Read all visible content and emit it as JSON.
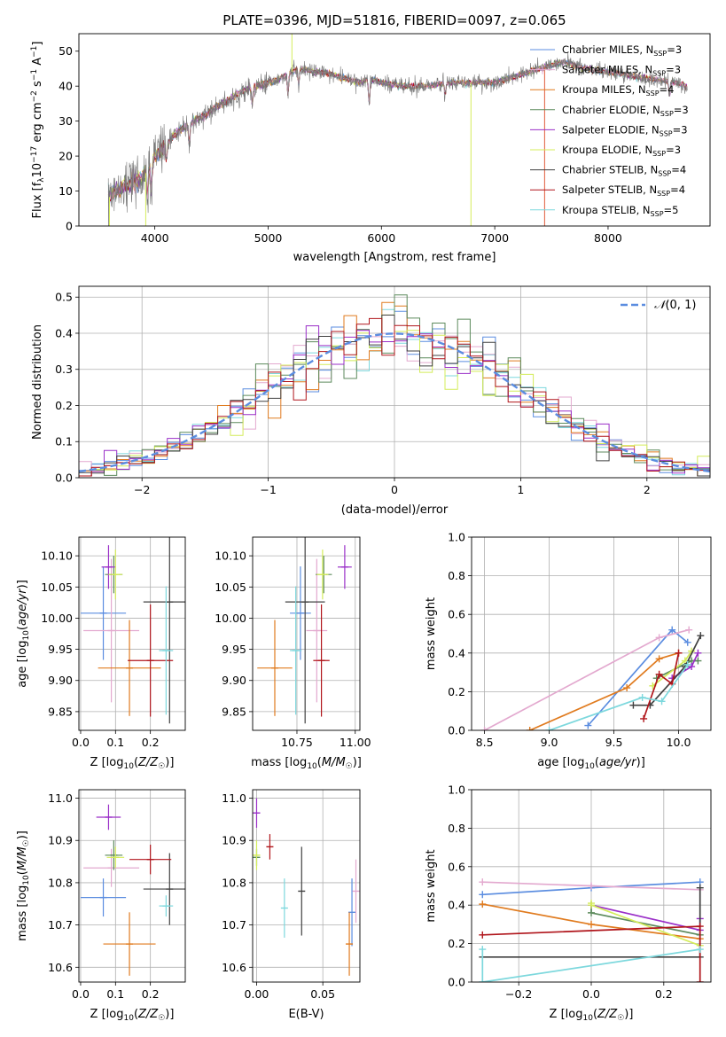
{
  "figure": {
    "title": "PLATE=0396, MJD=51816, FIBERID=0097, z=0.065"
  },
  "models": [
    {
      "name": "Chabrier MILES, N$_{SSP}$=3",
      "color": "#5b8de0"
    },
    {
      "name": "Salpeter MILES, N$_{SSP}$=3",
      "color": "#e3a9cf"
    },
    {
      "name": "Kroupa MILES, N$_{SSP}$=4",
      "color": "#e07b1f"
    },
    {
      "name": "Chabrier ELODIE, N$_{SSP}$=3",
      "color": "#5c8a5c"
    },
    {
      "name": "Salpeter ELODIE, N$_{SSP}$=3",
      "color": "#9a2fc8"
    },
    {
      "name": "Kroupa ELODIE, N$_{SSP}$=3",
      "color": "#d4ec5a"
    },
    {
      "name": "Chabrier STELIB, N$_{SSP}$=4",
      "color": "#404040"
    },
    {
      "name": "Salpeter STELIB, N$_{SSP}$=4",
      "color": "#b0151b"
    },
    {
      "name": "Kroupa STELIB, N$_{SSP}$=5",
      "color": "#7dd8dd"
    }
  ],
  "legend_labels": [
    {
      "pre": "Chabrier MILES, N",
      "sub": "SSP",
      "post": "=3"
    },
    {
      "pre": "Salpeter MILES, N",
      "sub": "SSP",
      "post": "=3"
    },
    {
      "pre": "Kroupa MILES, N",
      "sub": "SSP",
      "post": "=4"
    },
    {
      "pre": "Chabrier ELODIE, N",
      "sub": "SSP",
      "post": "=3"
    },
    {
      "pre": "Salpeter ELODIE, N",
      "sub": "SSP",
      "post": "=3"
    },
    {
      "pre": "Kroupa ELODIE, N",
      "sub": "SSP",
      "post": "=3"
    },
    {
      "pre": "Chabrier STELIB, N",
      "sub": "SSP",
      "post": "=4"
    },
    {
      "pre": "Salpeter STELIB, N",
      "sub": "SSP",
      "post": "=4"
    },
    {
      "pre": "Kroupa STELIB, N",
      "sub": "SSP",
      "post": "=5"
    }
  ],
  "chart_data": [
    {
      "id": "spectrum",
      "type": "line",
      "title": "PLATE=0396, MJD=51816, FIBERID=0097, z=0.065",
      "xlabel": "wavelength [Angstrom, rest frame]",
      "ylabel": "Flux [f_λ 10^-17 erg cm^-2 s^-1 A^-1]",
      "xlim": [
        3330,
        8900
      ],
      "ylim": [
        0,
        55
      ],
      "xticks": [
        4000,
        5000,
        6000,
        7000,
        8000
      ],
      "yticks": [
        0,
        10,
        20,
        30,
        40,
        50
      ],
      "legend": "top-right",
      "grid": false,
      "continuum": [
        [
          3590,
          8
        ],
        [
          3700,
          11
        ],
        [
          3850,
          13
        ],
        [
          3950,
          16
        ],
        [
          4000,
          20
        ],
        [
          4100,
          23
        ],
        [
          4200,
          27
        ],
        [
          4300,
          29
        ],
        [
          4400,
          31
        ],
        [
          4500,
          33
        ],
        [
          4600,
          35
        ],
        [
          4700,
          37
        ],
        [
          4800,
          39
        ],
        [
          4900,
          40
        ],
        [
          5000,
          41
        ],
        [
          5100,
          42
        ],
        [
          5200,
          44
        ],
        [
          5300,
          45
        ],
        [
          5400,
          44
        ],
        [
          5500,
          44
        ],
        [
          5600,
          43
        ],
        [
          5800,
          41
        ],
        [
          5900,
          42
        ],
        [
          6000,
          41
        ],
        [
          6200,
          40
        ],
        [
          6400,
          40
        ],
        [
          6600,
          41
        ],
        [
          6800,
          41
        ],
        [
          7000,
          41
        ],
        [
          7200,
          43
        ],
        [
          7400,
          45
        ],
        [
          7600,
          47
        ],
        [
          7800,
          45
        ],
        [
          8000,
          44
        ],
        [
          8200,
          43
        ],
        [
          8400,
          42
        ],
        [
          8600,
          41
        ],
        [
          8700,
          40
        ]
      ],
      "features": [
        [
          3934,
          8
        ],
        [
          3969,
          7
        ],
        [
          4102,
          4
        ],
        [
          4304,
          6
        ],
        [
          4861,
          5
        ],
        [
          5175,
          6
        ],
        [
          5270,
          4
        ],
        [
          5892,
          7
        ],
        [
          6563,
          3
        ],
        [
          8542,
          4
        ]
      ],
      "glitches": [
        {
          "x": 5210,
          "y": 55
        },
        {
          "x": 6790,
          "y": 0
        },
        {
          "x": 7440,
          "y": 0
        },
        {
          "x": 3920,
          "y": 0
        },
        {
          "x": 3600,
          "y": 0
        }
      ]
    },
    {
      "id": "residual_hist",
      "type": "area",
      "xlabel": "(data-model)/error",
      "ylabel": "Normed distribution",
      "xlim": [
        -2.5,
        2.5
      ],
      "ylim": [
        0,
        0.53
      ],
      "xticks": [
        -2,
        -1,
        0,
        1,
        2
      ],
      "yticks": [
        0.0,
        0.1,
        0.2,
        0.3,
        0.4,
        0.5
      ],
      "grid": true,
      "legend": "top-right",
      "reference_label": "N(0,1)",
      "reference_color": "#5b8de0",
      "bin_width": 0.1
    },
    {
      "id": "age_vs_Z",
      "type": "scatter",
      "xlabel": "Z [log10(Z/Z☉)]",
      "ylabel": "age [log10(age/yr)]",
      "xlim": [
        -0.005,
        0.3
      ],
      "ylim": [
        9.82,
        10.13
      ],
      "xticks": [
        0.0,
        0.1,
        0.2
      ],
      "yticks": [
        9.85,
        9.9,
        9.95,
        10.0,
        10.05,
        10.1
      ],
      "grid": true,
      "points": [
        {
          "m": 0,
          "x": 0.065,
          "y": 10.008,
          "xe": 0.065,
          "ye": 0.075
        },
        {
          "m": 1,
          "x": 0.088,
          "y": 9.98,
          "xe": 0.08,
          "ye": 0.115
        },
        {
          "m": 2,
          "x": 0.14,
          "y": 9.92,
          "xe": 0.09,
          "ye": 0.077
        },
        {
          "m": 3,
          "x": 0.095,
          "y": 10.07,
          "xe": 0.025,
          "ye": 0.03
        },
        {
          "m": 4,
          "x": 0.08,
          "y": 10.082,
          "xe": 0.02,
          "ye": 0.035
        },
        {
          "m": 5,
          "x": 0.1,
          "y": 10.07,
          "xe": 0.02,
          "ye": 0.04
        },
        {
          "m": 6,
          "x": 0.255,
          "y": 10.026,
          "xe": 0.075,
          "ye": 0.195
        },
        {
          "m": 7,
          "x": 0.2,
          "y": 9.932,
          "xe": 0.065,
          "ye": 0.09
        },
        {
          "m": 8,
          "x": 0.245,
          "y": 9.948,
          "xe": 0.02,
          "ye": 0.103
        }
      ]
    },
    {
      "id": "age_vs_mass",
      "type": "scatter",
      "xlabel": "mass [log10(M/M☉)]",
      "ylabel": "",
      "xlim": [
        10.56,
        11.02
      ],
      "ylim": [
        9.82,
        10.13
      ],
      "xticks": [
        10.75,
        11.0
      ],
      "yticks": [
        9.85,
        9.9,
        9.95,
        10.0,
        10.05,
        10.1
      ],
      "grid": true,
      "points": [
        {
          "m": 0,
          "x": 10.765,
          "y": 10.008,
          "xe": 0.045,
          "ye": 0.075
        },
        {
          "m": 1,
          "x": 10.835,
          "y": 9.98,
          "xe": 0.045,
          "ye": 0.115
        },
        {
          "m": 2,
          "x": 10.655,
          "y": 9.92,
          "xe": 0.075,
          "ye": 0.077
        },
        {
          "m": 3,
          "x": 10.865,
          "y": 10.07,
          "xe": 0.035,
          "ye": 0.03
        },
        {
          "m": 4,
          "x": 10.955,
          "y": 10.082,
          "xe": 0.03,
          "ye": 0.035
        },
        {
          "m": 5,
          "x": 10.86,
          "y": 10.07,
          "xe": 0.025,
          "ye": 0.04
        },
        {
          "m": 6,
          "x": 10.785,
          "y": 10.026,
          "xe": 0.085,
          "ye": 0.195
        },
        {
          "m": 7,
          "x": 10.855,
          "y": 9.932,
          "xe": 0.035,
          "ye": 0.09
        },
        {
          "m": 8,
          "x": 10.745,
          "y": 9.948,
          "xe": 0.025,
          "ye": 0.103
        }
      ]
    },
    {
      "id": "weight_vs_age",
      "type": "line",
      "xlabel": "age [log10(age/yr)]",
      "ylabel": "mass weight",
      "xlim": [
        8.4,
        10.25
      ],
      "ylim": [
        0,
        1
      ],
      "xticks": [
        8.5,
        9.0,
        9.5,
        10.0
      ],
      "yticks": [
        0.0,
        0.2,
        0.4,
        0.6,
        0.8,
        1.0
      ],
      "grid": true,
      "series": [
        {
          "m": 0,
          "x": [
            9.3,
            9.95,
            10.07
          ],
          "y": [
            0.025,
            0.52,
            0.455
          ]
        },
        {
          "m": 1,
          "x": [
            8.5,
            9.85,
            10.08
          ],
          "y": [
            0.0,
            0.48,
            0.52
          ]
        },
        {
          "m": 2,
          "x": [
            8.85,
            9.6,
            9.85,
            10.0
          ],
          "y": [
            0.0,
            0.22,
            0.37,
            0.4
          ]
        },
        {
          "m": 3,
          "x": [
            9.83,
            10.1,
            10.15
          ],
          "y": [
            0.27,
            0.36,
            0.36
          ]
        },
        {
          "m": 4,
          "x": [
            9.95,
            10.1,
            10.15
          ],
          "y": [
            0.27,
            0.33,
            0.4
          ]
        },
        {
          "m": 5,
          "x": [
            9.8,
            10.05,
            10.1
          ],
          "y": [
            0.23,
            0.36,
            0.41
          ]
        },
        {
          "m": 6,
          "x": [
            9.65,
            9.78,
            10.05,
            10.17
          ],
          "y": [
            0.13,
            0.13,
            0.33,
            0.49
          ]
        },
        {
          "m": 7,
          "x": [
            9.73,
            9.85,
            9.95,
            10.0
          ],
          "y": [
            0.06,
            0.29,
            0.24,
            0.4
          ]
        },
        {
          "m": 8,
          "x": [
            9.0,
            9.72,
            9.87,
            10.07
          ],
          "y": [
            0.0,
            0.17,
            0.15,
            0.34
          ]
        }
      ]
    },
    {
      "id": "mass_vs_Z",
      "type": "scatter",
      "xlabel": "Z [log10(Z/Z☉)]",
      "ylabel": "mass [log10(M/M☉)]",
      "xlim": [
        -0.005,
        0.3
      ],
      "ylim": [
        10.565,
        11.02
      ],
      "xticks": [
        0.0,
        0.1,
        0.2
      ],
      "yticks": [
        10.6,
        10.7,
        10.8,
        10.9,
        11.0
      ],
      "grid": true,
      "points": [
        {
          "m": 0,
          "x": 0.065,
          "y": 10.765,
          "xe": 0.065,
          "ye": 0.045
        },
        {
          "m": 1,
          "x": 0.088,
          "y": 10.835,
          "xe": 0.08,
          "ye": 0.045
        },
        {
          "m": 2,
          "x": 0.14,
          "y": 10.655,
          "xe": 0.075,
          "ye": 0.075
        },
        {
          "m": 3,
          "x": 0.095,
          "y": 10.865,
          "xe": 0.025,
          "ye": 0.035
        },
        {
          "m": 4,
          "x": 0.08,
          "y": 10.955,
          "xe": 0.035,
          "ye": 0.03
        },
        {
          "m": 5,
          "x": 0.1,
          "y": 10.86,
          "xe": 0.025,
          "ye": 0.025
        },
        {
          "m": 6,
          "x": 0.255,
          "y": 10.785,
          "xe": 0.075,
          "ye": 0.085
        },
        {
          "m": 7,
          "x": 0.2,
          "y": 10.855,
          "xe": 0.06,
          "ye": 0.035
        },
        {
          "m": 8,
          "x": 0.245,
          "y": 10.745,
          "xe": 0.02,
          "ye": 0.025
        }
      ]
    },
    {
      "id": "mass_vs_ebv",
      "type": "scatter",
      "xlabel": "E(B-V)",
      "ylabel": "",
      "xlim": [
        -0.003,
        0.078
      ],
      "ylim": [
        10.565,
        11.02
      ],
      "xticks": [
        0.0,
        0.05
      ],
      "yticks": [
        10.6,
        10.7,
        10.8,
        10.9,
        11.0
      ],
      "grid": true,
      "points": [
        {
          "m": 0,
          "x": 0.072,
          "y": 10.73,
          "xe": 0,
          "ye": 0.08
        },
        {
          "m": 1,
          "x": 0.075,
          "y": 10.78,
          "xe": 0,
          "ye": 0.075
        },
        {
          "m": 2,
          "x": 0.07,
          "y": 10.655,
          "xe": 0,
          "ye": 0.075
        },
        {
          "m": 3,
          "x": 0.0,
          "y": 10.86,
          "xe": 0,
          "ye": 0.02
        },
        {
          "m": 4,
          "x": 0.0,
          "y": 10.965,
          "xe": 0,
          "ye": 0.035
        },
        {
          "m": 5,
          "x": 0.0,
          "y": 10.865,
          "xe": 0,
          "ye": 0.035
        },
        {
          "m": 6,
          "x": 0.034,
          "y": 10.78,
          "xe": 0,
          "ye": 0.105
        },
        {
          "m": 7,
          "x": 0.01,
          "y": 10.885,
          "xe": 0,
          "ye": 0.03
        },
        {
          "m": 8,
          "x": 0.021,
          "y": 10.74,
          "xe": 0,
          "ye": 0.07
        }
      ]
    },
    {
      "id": "weight_vs_Z",
      "type": "line",
      "xlabel": "Z [log10(Z/Z☉)]",
      "ylabel": "mass weight",
      "xlim": [
        -0.33,
        0.33
      ],
      "ylim": [
        0,
        1
      ],
      "xticks": [
        -0.2,
        0.0,
        0.2
      ],
      "yticks": [
        0.0,
        0.2,
        0.4,
        0.6,
        0.8,
        1.0
      ],
      "grid": true,
      "series": [
        {
          "m": 0,
          "x": [
            -0.3,
            0.0,
            0.3
          ],
          "y": [
            0.455,
            0.49,
            0.52
          ]
        },
        {
          "m": 1,
          "x": [
            -0.3,
            0.0,
            0.3
          ],
          "y": [
            0.52,
            0.5,
            0.48
          ]
        },
        {
          "m": 2,
          "x": [
            -0.3,
            0.0,
            0.3
          ],
          "y": [
            0.405,
            0.3,
            0.225
          ]
        },
        {
          "m": 3,
          "x": [
            0.0,
            0.0,
            0.3
          ],
          "y": [
            0.4,
            0.36,
            0.245
          ]
        },
        {
          "m": 4,
          "x": [
            0.0,
            0.3,
            0.3
          ],
          "y": [
            0.4,
            0.27,
            0.33
          ]
        },
        {
          "m": 5,
          "x": [
            0.0,
            0.0,
            0.3
          ],
          "y": [
            0.41,
            0.4,
            0.19
          ]
        },
        {
          "m": 6,
          "x": [
            -0.3,
            0.3,
            0.3
          ],
          "y": [
            0.13,
            0.13,
            0.49
          ]
        },
        {
          "m": 7,
          "x": [
            -0.3,
            0.3,
            0.3
          ],
          "y": [
            0.245,
            0.29,
            0.0
          ]
        },
        {
          "m": 8,
          "x": [
            -0.3,
            -0.3,
            0.3
          ],
          "y": [
            0.17,
            0.0,
            0.17
          ]
        }
      ]
    }
  ]
}
